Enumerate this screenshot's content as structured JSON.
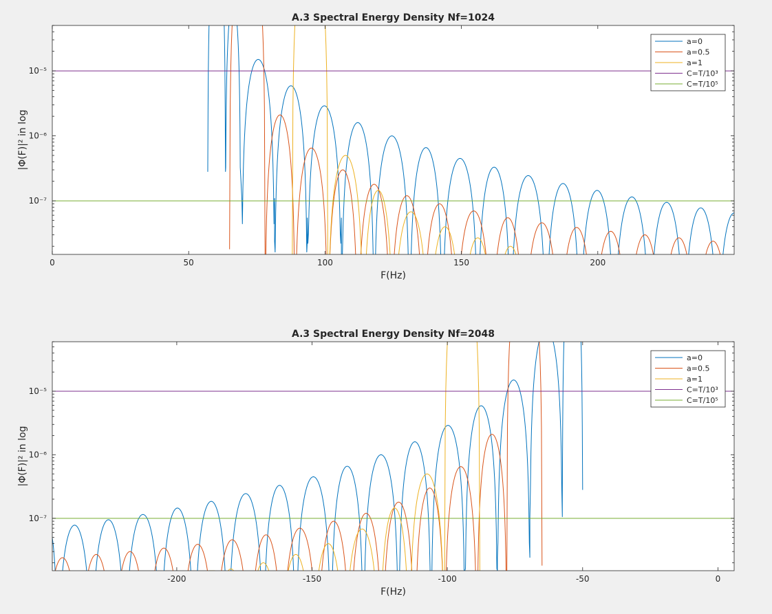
{
  "chart_data": [
    {
      "type": "line",
      "title": "A.3 Spectral Energy Density Nf=1024",
      "xlabel": "F(Hz)",
      "ylabel": "|Φ(F)|² in log",
      "xscale": "linear",
      "yscale": "log",
      "xlim": [
        0,
        250
      ],
      "ylim": [
        1.5e-08,
        5e-05
      ],
      "xticks": [
        "0",
        "50",
        "100",
        "150",
        "200"
      ],
      "xtick_values": [
        0,
        50,
        100,
        150,
        200
      ],
      "yticks": [
        "10⁻⁷",
        "10⁻⁶",
        "10⁻⁵"
      ],
      "ytick_values": [
        1e-07,
        1e-06,
        1e-05
      ],
      "grid": false,
      "legend_position": "top-right",
      "series": [
        {
          "name": "a=0",
          "color": "#0072BD",
          "kind": "lobes",
          "start": 50,
          "spacing": 12.5,
          "lobes": [
            [
              57,
              63.5,
              0.001,
              2.8e-07
            ],
            [
              63.5,
              69,
              0.00012,
              2.8e-07
            ],
            [
              69.5,
              81.5,
              1.5e-05,
              1.1e-07
            ],
            [
              81.5,
              93.5,
              5.9e-06,
              2.4e-08
            ],
            [
              93.5,
              106,
              2.9e-06,
              5.5e-08
            ],
            [
              106,
              118,
              1.6e-06,
              1.5e-08
            ],
            [
              118,
              131,
              1e-06,
              1.5e-08
            ],
            [
              131,
              143,
              6.6e-07,
              1.5e-08
            ],
            [
              143,
              156,
              4.5e-07,
              1.5e-08
            ],
            [
              156,
              168,
              3.3e-07,
              1.5e-08
            ],
            [
              168,
              181,
              2.45e-07,
              1.5e-08
            ],
            [
              181,
              193.5,
              1.85e-07,
              1.5e-08
            ],
            [
              193.5,
              206,
              1.45e-07,
              1.5e-08
            ],
            [
              206,
              219,
              1.15e-07,
              1.5e-08
            ],
            [
              219,
              231.5,
              9.5e-08,
              1.5e-08
            ],
            [
              231.5,
              244,
              7.8e-08,
              1.5e-08
            ],
            [
              244,
              256,
              6.5e-08,
              1.5e-08
            ]
          ]
        },
        {
          "name": "a=0.5",
          "color": "#D95319",
          "kind": "lobes",
          "lobes": [
            [
              65,
              78,
              0.001,
              1.8e-08
            ],
            [
              78,
              89,
              2.1e-06,
              1.5e-08
            ],
            [
              89,
              101,
              6.5e-07,
              1.5e-08
            ],
            [
              101,
              112,
              3e-07,
              1.5e-08
            ],
            [
              112,
              124,
              1.8e-07,
              1.5e-08
            ],
            [
              124,
              136,
              1.2e-07,
              1.5e-08
            ],
            [
              136,
              148,
              9e-08,
              1.5e-08
            ],
            [
              148,
              161,
              7e-08,
              1.5e-08
            ],
            [
              161,
              173,
              5.5e-08,
              1.5e-08
            ],
            [
              173,
              186,
              4.6e-08,
              1.5e-08
            ],
            [
              186,
              198.5,
              3.9e-08,
              1.5e-08
            ],
            [
              198.5,
              211,
              3.4e-08,
              1.5e-08
            ],
            [
              211,
              223.5,
              3e-08,
              1.5e-08
            ],
            [
              223.5,
              236,
              2.7e-08,
              1.5e-08
            ],
            [
              236,
              248.5,
              2.4e-08,
              1.5e-08
            ]
          ]
        },
        {
          "name": "a=1",
          "color": "#EDB120",
          "kind": "lobes",
          "lobes": [
            [
              88,
              101,
              0.001,
              1.5e-08
            ],
            [
              101,
              114,
              5e-07,
              1.5e-08
            ],
            [
              114,
              125,
              1.45e-07,
              1.5e-08
            ],
            [
              125,
              138,
              6.8e-08,
              1.5e-08
            ],
            [
              138,
              150,
              4e-08,
              1.5e-08
            ],
            [
              150,
              162,
              2.7e-08,
              1.5e-08
            ],
            [
              162,
              174,
              2e-08,
              1.5e-08
            ]
          ]
        },
        {
          "name": "C=T/10³",
          "color": "#7E2F8E",
          "kind": "hline",
          "value": 1e-05
        },
        {
          "name": "C=T/10⁵",
          "color": "#77AC30",
          "kind": "hline",
          "value": 1e-07
        }
      ]
    },
    {
      "type": "line",
      "title": "A.3 Spectral Energy Density  Nf=2048",
      "xlabel": "F(Hz)",
      "ylabel": "|Φ(F)|² in log",
      "xscale": "linear",
      "yscale": "log",
      "xlim": [
        -246,
        6
      ],
      "ylim": [
        1.5e-08,
        6e-05
      ],
      "xticks": [
        "-200",
        "-150",
        "-100",
        "-50",
        "0"
      ],
      "xtick_values": [
        -200,
        -150,
        -100,
        -50,
        0
      ],
      "yticks": [
        "10⁻⁷",
        "10⁻⁶",
        "10⁻⁵"
      ],
      "ytick_values": [
        1e-07,
        1e-06,
        1e-05
      ],
      "grid": false,
      "legend_position": "top-right",
      "series": [
        {
          "name": "a=0",
          "color": "#0072BD",
          "kind": "lobes",
          "lobes": [
            [
              -250,
              -244,
              6.5e-08,
              1.5e-08
            ],
            [
              -244,
              -231.5,
              7.8e-08,
              1.5e-08
            ],
            [
              -231.5,
              -219,
              9.5e-08,
              1.5e-08
            ],
            [
              -219,
              -206,
              1.15e-07,
              1.5e-08
            ],
            [
              -206,
              -193.5,
              1.45e-07,
              1.5e-08
            ],
            [
              -193.5,
              -181,
              1.85e-07,
              1.5e-08
            ],
            [
              -181,
              -168,
              2.45e-07,
              1.5e-08
            ],
            [
              -168,
              -156,
              3.3e-07,
              1.5e-08
            ],
            [
              -156,
              -143,
              4.5e-07,
              1.5e-08
            ],
            [
              -143,
              -131,
              6.6e-07,
              1.5e-08
            ],
            [
              -131,
              -118,
              1e-06,
              1.5e-08
            ],
            [
              -118,
              -106,
              1.6e-06,
              1.5e-08
            ],
            [
              -106,
              -93.5,
              2.9e-06,
              1.5e-08
            ],
            [
              -93.5,
              -81.5,
              5.9e-06,
              1.5e-08
            ],
            [
              -81.5,
              -69.5,
              1.5e-05,
              2.4e-08
            ],
            [
              -69.5,
              -57.5,
              0.0001,
              1.05e-07
            ],
            [
              -57.5,
              -50,
              0.001,
              2.8e-07
            ]
          ]
        },
        {
          "name": "a=0.5",
          "color": "#D95319",
          "kind": "lobes",
          "lobes": [
            [
              -248.5,
              -236,
              2.4e-08,
              1.5e-08
            ],
            [
              -236,
              -223.5,
              2.7e-08,
              1.5e-08
            ],
            [
              -223.5,
              -211,
              3e-08,
              1.5e-08
            ],
            [
              -211,
              -198.5,
              3.4e-08,
              1.5e-08
            ],
            [
              -198.5,
              -186,
              3.9e-08,
              1.5e-08
            ],
            [
              -186,
              -173,
              4.6e-08,
              1.5e-08
            ],
            [
              -173,
              -161,
              5.5e-08,
              1.5e-08
            ],
            [
              -161,
              -148,
              7e-08,
              1.5e-08
            ],
            [
              -148,
              -136,
              9e-08,
              1.5e-08
            ],
            [
              -136,
              -124,
              1.2e-07,
              1.5e-08
            ],
            [
              -124,
              -112,
              1.8e-07,
              1.5e-08
            ],
            [
              -112,
              -101,
              3e-07,
              1.5e-08
            ],
            [
              -101,
              -89,
              6.5e-07,
              1.5e-08
            ],
            [
              -89,
              -78,
              2.1e-06,
              1.5e-08
            ],
            [
              -78,
              -65,
              0.001,
              1.8e-08
            ]
          ]
        },
        {
          "name": "a=1",
          "color": "#EDB120",
          "kind": "lobes",
          "lobes": [
            [
              -200,
              -188,
              1.2e-08,
              1.5e-08
            ],
            [
              -186,
              -174,
              1.6e-08,
              1.5e-08
            ],
            [
              -174,
              -162,
              2e-08,
              1.5e-08
            ],
            [
              -162,
              -150,
              2.7e-08,
              1.5e-08
            ],
            [
              -150,
              -138,
              4e-08,
              1.5e-08
            ],
            [
              -138,
              -125,
              6.8e-08,
              1.5e-08
            ],
            [
              -125,
              -114,
              1.45e-07,
              1.5e-08
            ],
            [
              -114,
              -101,
              5e-07,
              1.5e-08
            ],
            [
              -101,
              -88,
              0.001,
              1.5e-08
            ]
          ]
        },
        {
          "name": "C=T/10³",
          "color": "#7E2F8E",
          "kind": "hline",
          "value": 1e-05
        },
        {
          "name": "C=T/10⁵",
          "color": "#77AC30",
          "kind": "hline",
          "value": 1e-07
        }
      ]
    }
  ]
}
